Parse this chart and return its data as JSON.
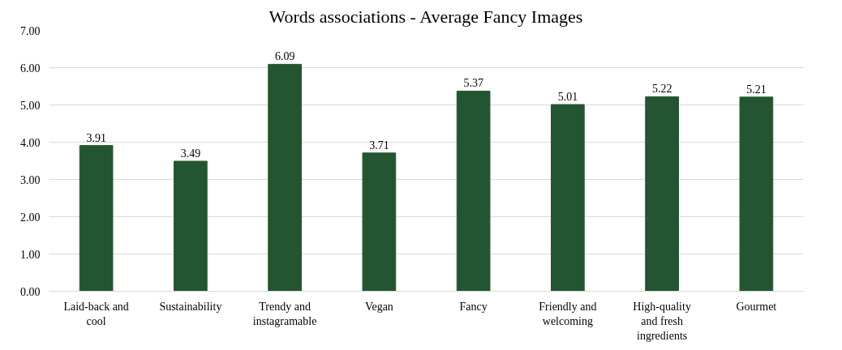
{
  "chart_data": {
    "type": "bar",
    "title": "Words associations - Average Fancy Images",
    "categories": [
      "Laid-back and cool",
      "Sustainability",
      "Trendy and instagramable",
      "Vegan",
      "Fancy",
      "Friendly and welcoming",
      "High-quality and fresh ingredients",
      "Gourmet"
    ],
    "values": [
      3.91,
      3.49,
      6.09,
      3.71,
      5.37,
      5.01,
      5.22,
      5.21
    ],
    "color": "#235630",
    "ylim": [
      0,
      7
    ],
    "yticks": [
      {
        "value": 0,
        "label": "0.00"
      },
      {
        "value": 1,
        "label": "1.00"
      },
      {
        "value": 2,
        "label": "2.00"
      },
      {
        "value": 3,
        "label": "3.00"
      },
      {
        "value": 4,
        "label": "4.00"
      },
      {
        "value": 5,
        "label": "5.00"
      },
      {
        "value": 6,
        "label": "6.00"
      },
      {
        "value": 7,
        "label": "7.00"
      }
    ],
    "grid": "y",
    "data_labels": true
  }
}
